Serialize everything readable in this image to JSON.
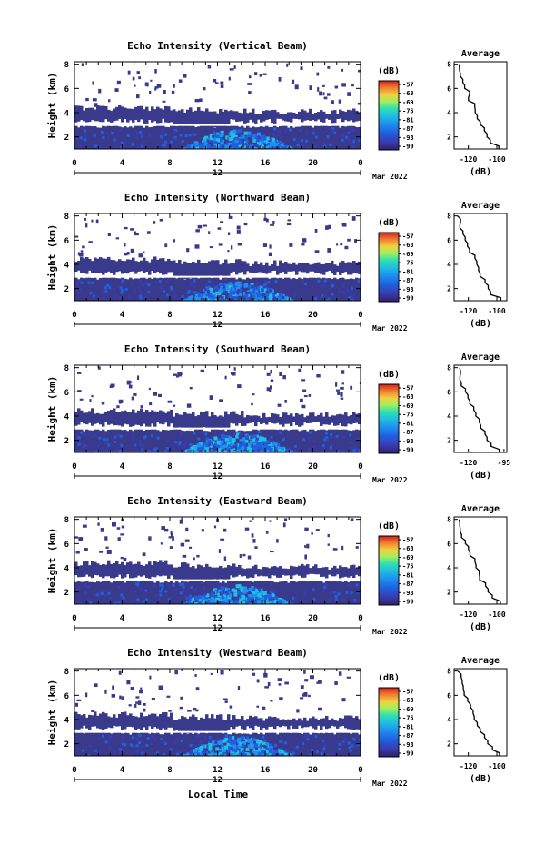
{
  "panels": [
    {
      "title": "Echo Intensity (Vertical Beam)",
      "avg_xticks": [
        "-120",
        "-100"
      ]
    },
    {
      "title": "Echo Intensity (Northward Beam)",
      "avg_xticks": [
        "-120",
        "-100"
      ]
    },
    {
      "title": "Echo Intensity (Southward Beam)",
      "avg_xticks": [
        "-120",
        "-95"
      ]
    },
    {
      "title": "Echo Intensity (Eastward Beam)",
      "avg_xticks": [
        "-120",
        "-100"
      ]
    },
    {
      "title": "Echo Intensity (Westward Beam)",
      "avg_xticks": [
        "-120",
        "-100"
      ]
    }
  ],
  "common": {
    "ylabel": "Height (km)",
    "yticks": [
      "2",
      "4",
      "6",
      "8"
    ],
    "xticks": [
      "0",
      "4",
      "8",
      "12",
      "16",
      "20",
      "0"
    ],
    "date_day": "12",
    "date_month": "Mar 2022",
    "xlabel": "Local Time",
    "colorbar_unit": "(dB)",
    "colorbar_ticks": [
      "-57",
      "-63",
      "-69",
      "-75",
      "-81",
      "-87",
      "-93",
      "-99"
    ],
    "avg_title": "Average",
    "avg_yticks": [
      "2",
      "4",
      "6",
      "8"
    ],
    "avg_xlabel": "(dB)"
  },
  "colors": {
    "colormap": [
      "#30206a",
      "#3a3cb0",
      "#2060e0",
      "#1e90f0",
      "#20c0e0",
      "#30e0b0",
      "#80f080",
      "#d0f050",
      "#f0c030",
      "#f08030",
      "#d02020"
    ],
    "background_echo": "#3a3a8c",
    "noise": "#ffffff"
  },
  "chart_data": {
    "type": "heatmap",
    "x_range_hours": [
      0,
      24
    ],
    "y_range_km": [
      1,
      8.2
    ],
    "colorbar_range_db": [
      -99,
      -57
    ],
    "average_profile": {
      "height_km": [
        1.0,
        1.5,
        2.0,
        2.5,
        3.0,
        3.5,
        4.0,
        4.5,
        5.0,
        5.5,
        6.0,
        6.5,
        7.0,
        7.5,
        8.0
      ],
      "db": [
        -98,
        -104,
        -106,
        -108,
        -112,
        -113,
        -115,
        -116,
        -119,
        -120,
        -122,
        -124,
        -125,
        -126,
        -127
      ]
    },
    "avg_xlim": [
      -130,
      -93
    ]
  }
}
